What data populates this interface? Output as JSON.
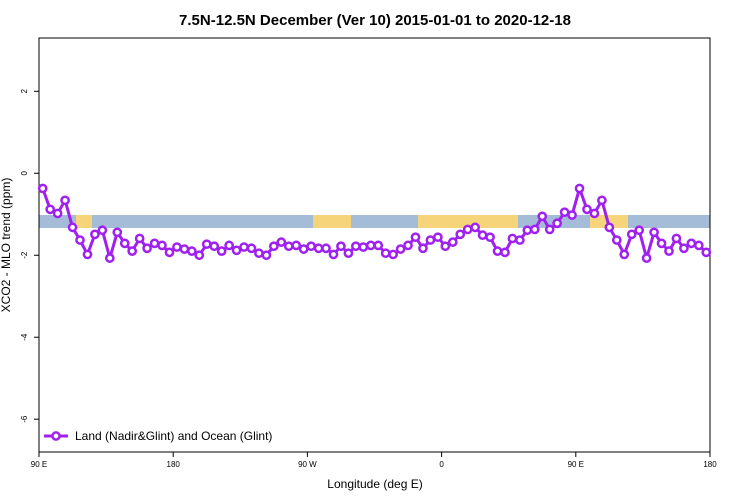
{
  "chart_data": {
    "type": "line",
    "title": "7.5N-12.5N December (Ver 10)   2015-01-01 to 2020-12-18",
    "x_label": "Longitude (deg E)",
    "y_label": "XCO2 - MLO trend (ppm)",
    "xlim": [
      90,
      540
    ],
    "ylim": [
      -6.8,
      3.3
    ],
    "xticks": [
      {
        "value": 90,
        "label": "90 E"
      },
      {
        "value": 180,
        "label": "180"
      },
      {
        "value": 270,
        "label": "90 W"
      },
      {
        "value": 360,
        "label": "0"
      },
      {
        "value": 450,
        "label": "90 E"
      },
      {
        "value": 540,
        "label": "180"
      }
    ],
    "yticks": [
      2,
      0,
      -2,
      -4,
      -6
    ],
    "legend": "bottom-left",
    "x": [
      92.5,
      97.5,
      102.5,
      107.5,
      112.5,
      117.5,
      122.5,
      127.5,
      132.5,
      137.5,
      142.5,
      147.5,
      152.5,
      157.5,
      162.5,
      167.5,
      172.5,
      177.5,
      182.5,
      187.5,
      192.5,
      197.5,
      202.5,
      207.5,
      212.5,
      217.5,
      222.5,
      227.5,
      232.5,
      237.5,
      242.5,
      247.5,
      252.5,
      257.5,
      262.5,
      267.5,
      272.5,
      277.5,
      282.5,
      287.5,
      292.5,
      297.5,
      302.5,
      307.5,
      312.5,
      317.5,
      322.5,
      327.5,
      332.5,
      337.5,
      342.5,
      347.5,
      352.5,
      357.5,
      362.5,
      367.5,
      372.5,
      377.5,
      382.5,
      387.5,
      392.5,
      397.5,
      402.5,
      407.5,
      412.5,
      417.5,
      422.5,
      427.5,
      432.5,
      437.5,
      442.5,
      447.5,
      452.5,
      457.5,
      462.5,
      467.5,
      472.5,
      477.5,
      482.5,
      487.5,
      492.5,
      497.5,
      502.5,
      507.5,
      512.5,
      517.5,
      522.5,
      527.5,
      532.5,
      537.5
    ],
    "series": [
      {
        "name": "Land (Nadir&Glint) and Ocean (Glint)",
        "color": "#a020f0",
        "values": [
          -0.37,
          -0.88,
          -0.98,
          -0.66,
          -1.32,
          -1.63,
          -1.98,
          -1.49,
          -1.39,
          -2.07,
          -1.44,
          -1.71,
          -1.9,
          -1.59,
          -1.83,
          -1.71,
          -1.76,
          -1.93,
          -1.8,
          -1.85,
          -1.9,
          -2.0,
          -1.73,
          -1.78,
          -1.9,
          -1.76,
          -1.88,
          -1.8,
          -1.83,
          -1.95,
          -2.0,
          -1.78,
          -1.68,
          -1.78,
          -1.76,
          -1.85,
          -1.78,
          -1.83,
          -1.83,
          -1.98,
          -1.78,
          -1.95,
          -1.78,
          -1.8,
          -1.76,
          -1.76,
          -1.95,
          -1.98,
          -1.85,
          -1.76,
          -1.56,
          -1.83,
          -1.63,
          -1.56,
          -1.78,
          -1.68,
          -1.49,
          -1.37,
          -1.32,
          -1.51,
          -1.56,
          -1.9,
          -1.93,
          -1.59,
          -1.63,
          -1.39,
          -1.37,
          -1.05,
          -1.37,
          -1.22,
          -0.95,
          -1.02,
          -0.37,
          -0.88,
          -0.98,
          -0.66,
          -1.32,
          -1.63,
          -1.98,
          -1.49,
          -1.39,
          -2.07,
          -1.44,
          -1.71,
          -1.9,
          -1.59,
          -1.83,
          -1.71,
          -1.76,
          -1.93
        ]
      }
    ]
  }
}
